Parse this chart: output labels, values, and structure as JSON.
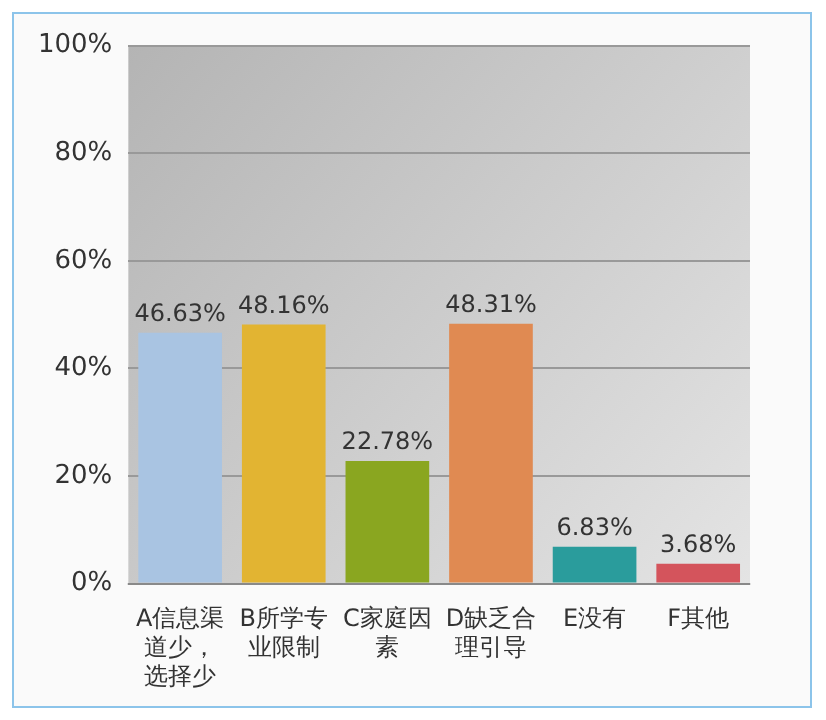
{
  "chart_data": {
    "type": "bar",
    "categories": [
      "A信息渠道少，选择少",
      "B所学专业限制",
      "C家庭因素",
      "D缺乏合理引导",
      "E没有",
      "F其他"
    ],
    "values": [
      46.63,
      48.16,
      22.78,
      48.31,
      6.83,
      3.68
    ],
    "colors": [
      "#a9c4e2",
      "#e2b432",
      "#8aa620",
      "#e08a52",
      "#2a9c9c",
      "#d4545c"
    ],
    "ylim": [
      0,
      100
    ],
    "yticks": [
      {
        "value": 0,
        "label": "0%"
      },
      {
        "value": 20,
        "label": "20%"
      },
      {
        "value": 40,
        "label": "40%"
      },
      {
        "value": 60,
        "label": "60%"
      },
      {
        "value": 80,
        "label": "80%"
      },
      {
        "value": 100,
        "label": "100%"
      }
    ],
    "value_labels": [
      "46.63%",
      "48.16%",
      "22.78%",
      "48.31%",
      "6.83%",
      "3.68%"
    ],
    "grid": "y",
    "legend": false
  }
}
